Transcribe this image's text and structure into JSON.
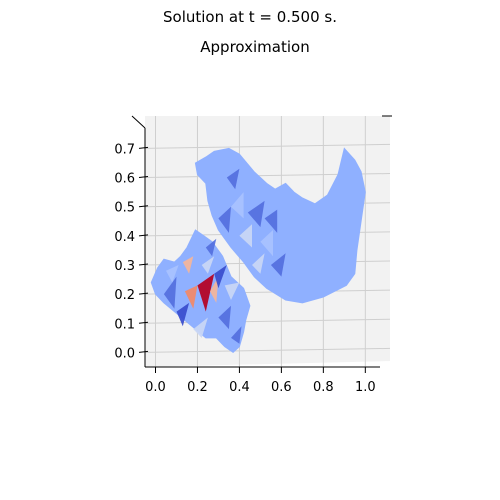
{
  "suptitle": "Solution at t = 0.500 s.",
  "chart_data": {
    "type": "surface",
    "title": "Approximation",
    "xlabel": "",
    "ylabel": "",
    "xlim": [
      -0.05,
      1.07
    ],
    "ylim": [
      -0.05,
      0.77
    ],
    "x_ticks": [
      "0.0",
      "0.2",
      "0.4",
      "0.6",
      "0.8",
      "1.0"
    ],
    "y_ticks": [
      "0.0",
      "0.1",
      "0.2",
      "0.3",
      "0.4",
      "0.5",
      "0.6",
      "0.7"
    ],
    "grid": true,
    "colormap": "coolwarm",
    "colors": {
      "base": "#8fb0ff",
      "mid_light": "#a9c2ff",
      "light": "#c8d6f5",
      "dark": "#5571df",
      "darker": "#3b4fcf",
      "warm_light": "#f2b59c",
      "warm": "#f08a6c",
      "hot": "#b40426"
    },
    "regions": [
      {
        "name": "large-domain",
        "outline": [
          [
            0.19,
            0.65
          ],
          [
            0.24,
            0.67
          ],
          [
            0.28,
            0.69
          ],
          [
            0.35,
            0.7
          ],
          [
            0.4,
            0.68
          ],
          [
            0.47,
            0.62
          ],
          [
            0.53,
            0.58
          ],
          [
            0.57,
            0.56
          ],
          [
            0.62,
            0.58
          ],
          [
            0.66,
            0.55
          ],
          [
            0.7,
            0.53
          ],
          [
            0.76,
            0.51
          ],
          [
            0.82,
            0.54
          ],
          [
            0.87,
            0.61
          ],
          [
            0.9,
            0.7
          ],
          [
            0.95,
            0.66
          ],
          [
            0.98,
            0.62
          ],
          [
            1.0,
            0.55
          ],
          [
            0.98,
            0.45
          ],
          [
            0.96,
            0.35
          ],
          [
            0.95,
            0.27
          ],
          [
            0.91,
            0.23
          ],
          [
            0.8,
            0.19
          ],
          [
            0.7,
            0.17
          ],
          [
            0.62,
            0.18
          ],
          [
            0.53,
            0.22
          ],
          [
            0.47,
            0.26
          ],
          [
            0.42,
            0.31
          ],
          [
            0.36,
            0.36
          ],
          [
            0.3,
            0.42
          ],
          [
            0.27,
            0.47
          ],
          [
            0.25,
            0.52
          ],
          [
            0.24,
            0.58
          ],
          [
            0.2,
            0.61
          ]
        ]
      },
      {
        "name": "small-domain",
        "outline": [
          [
            -0.02,
            0.24
          ],
          [
            0.01,
            0.29
          ],
          [
            0.04,
            0.32
          ],
          [
            0.09,
            0.31
          ],
          [
            0.12,
            0.33
          ],
          [
            0.15,
            0.36
          ],
          [
            0.19,
            0.42
          ],
          [
            0.23,
            0.4
          ],
          [
            0.27,
            0.38
          ],
          [
            0.32,
            0.33
          ],
          [
            0.36,
            0.26
          ],
          [
            0.42,
            0.22
          ],
          [
            0.45,
            0.16
          ],
          [
            0.43,
            0.11
          ],
          [
            0.42,
            0.07
          ],
          [
            0.4,
            0.02
          ],
          [
            0.37,
            0.0
          ],
          [
            0.33,
            0.02
          ],
          [
            0.29,
            0.05
          ],
          [
            0.24,
            0.05
          ],
          [
            0.19,
            0.08
          ],
          [
            0.14,
            0.11
          ],
          [
            0.09,
            0.14
          ],
          [
            0.04,
            0.17
          ],
          [
            0.0,
            0.2
          ]
        ]
      }
    ],
    "patches": [
      {
        "pts": [
          [
            0.2,
            0.23
          ],
          [
            0.28,
            0.27
          ],
          [
            0.24,
            0.14
          ]
        ],
        "tone": "hot"
      },
      {
        "pts": [
          [
            0.14,
            0.21
          ],
          [
            0.2,
            0.23
          ],
          [
            0.18,
            0.15
          ]
        ],
        "tone": "warm"
      },
      {
        "pts": [
          [
            0.26,
            0.21
          ],
          [
            0.3,
            0.26
          ],
          [
            0.29,
            0.17
          ]
        ],
        "tone": "warm_light"
      },
      {
        "pts": [
          [
            0.13,
            0.31
          ],
          [
            0.18,
            0.33
          ],
          [
            0.16,
            0.27
          ]
        ],
        "tone": "warm_light"
      },
      {
        "pts": [
          [
            0.28,
            0.27
          ],
          [
            0.34,
            0.3
          ],
          [
            0.3,
            0.22
          ]
        ],
        "tone": "darker"
      },
      {
        "pts": [
          [
            0.04,
            0.2
          ],
          [
            0.1,
            0.26
          ],
          [
            0.09,
            0.15
          ]
        ],
        "tone": "dark"
      },
      {
        "pts": [
          [
            0.1,
            0.14
          ],
          [
            0.16,
            0.17
          ],
          [
            0.13,
            0.09
          ]
        ],
        "tone": "darker"
      },
      {
        "pts": [
          [
            0.3,
            0.12
          ],
          [
            0.36,
            0.16
          ],
          [
            0.35,
            0.08
          ]
        ],
        "tone": "dark"
      },
      {
        "pts": [
          [
            0.22,
            0.3
          ],
          [
            0.28,
            0.33
          ],
          [
            0.25,
            0.27
          ]
        ],
        "tone": "light"
      },
      {
        "pts": [
          [
            0.18,
            0.08
          ],
          [
            0.25,
            0.12
          ],
          [
            0.22,
            0.05
          ]
        ],
        "tone": "light"
      },
      {
        "pts": [
          [
            0.05,
            0.28
          ],
          [
            0.11,
            0.3
          ],
          [
            0.08,
            0.24
          ]
        ],
        "tone": "mid_light"
      },
      {
        "pts": [
          [
            0.33,
            0.23
          ],
          [
            0.4,
            0.24
          ],
          [
            0.36,
            0.18
          ]
        ],
        "tone": "light"
      },
      {
        "pts": [
          [
            0.24,
            0.36
          ],
          [
            0.29,
            0.39
          ],
          [
            0.27,
            0.33
          ]
        ],
        "tone": "dark"
      },
      {
        "pts": [
          [
            0.36,
            0.05
          ],
          [
            0.41,
            0.09
          ],
          [
            0.4,
            0.03
          ]
        ],
        "tone": "dark"
      },
      {
        "pts": [
          [
            0.3,
            0.46
          ],
          [
            0.36,
            0.5
          ],
          [
            0.35,
            0.41
          ]
        ],
        "tone": "dark"
      },
      {
        "pts": [
          [
            0.36,
            0.5
          ],
          [
            0.42,
            0.55
          ],
          [
            0.42,
            0.46
          ]
        ],
        "tone": "mid_light"
      },
      {
        "pts": [
          [
            0.4,
            0.4
          ],
          [
            0.46,
            0.44
          ],
          [
            0.46,
            0.36
          ]
        ],
        "tone": "light"
      },
      {
        "pts": [
          [
            0.44,
            0.48
          ],
          [
            0.52,
            0.52
          ],
          [
            0.5,
            0.43
          ]
        ],
        "tone": "dark"
      },
      {
        "pts": [
          [
            0.5,
            0.38
          ],
          [
            0.56,
            0.42
          ],
          [
            0.56,
            0.33
          ]
        ],
        "tone": "mid_light"
      },
      {
        "pts": [
          [
            0.52,
            0.46
          ],
          [
            0.58,
            0.49
          ],
          [
            0.58,
            0.41
          ]
        ],
        "tone": "dark"
      },
      {
        "pts": [
          [
            0.34,
            0.6
          ],
          [
            0.4,
            0.63
          ],
          [
            0.38,
            0.56
          ]
        ],
        "tone": "dark"
      },
      {
        "pts": [
          [
            0.55,
            0.3
          ],
          [
            0.62,
            0.34
          ],
          [
            0.6,
            0.26
          ]
        ],
        "tone": "dark"
      },
      {
        "pts": [
          [
            0.46,
            0.3
          ],
          [
            0.52,
            0.34
          ],
          [
            0.5,
            0.27
          ]
        ],
        "tone": "light"
      }
    ]
  }
}
